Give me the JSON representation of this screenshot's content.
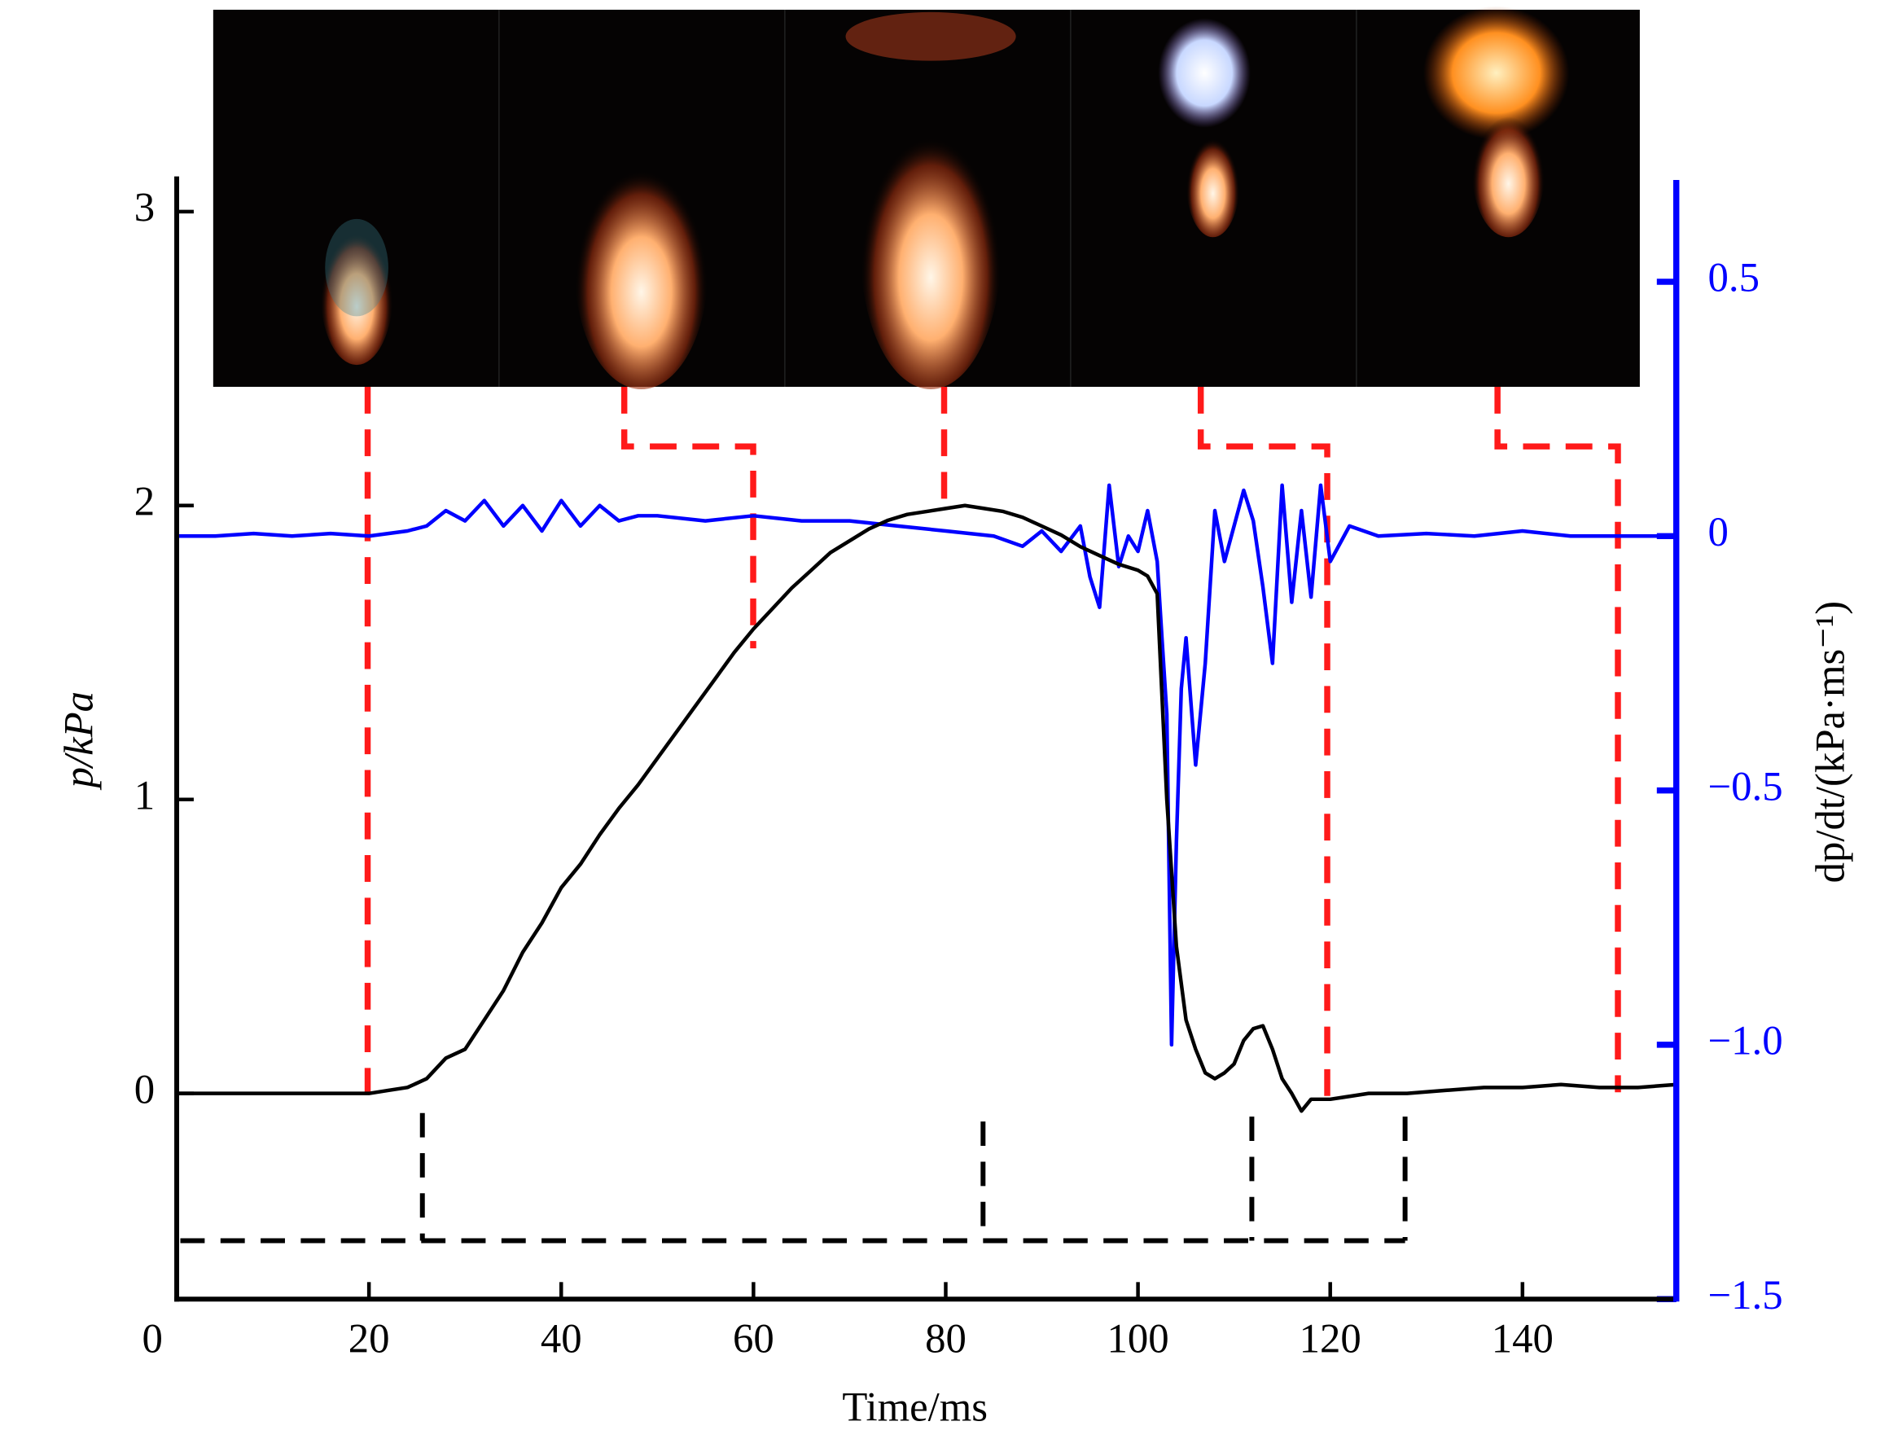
{
  "chart_data": {
    "type": "line",
    "xlabel": "Time/ms",
    "ylabel": "p/kPa",
    "y2label": "dp/dt/(kPa·ms⁻¹)",
    "xlim": [
      0,
      156
    ],
    "xticks": [
      0,
      20,
      40,
      60,
      80,
      100,
      120,
      140
    ],
    "ylim": [
      -0.7,
      3.12
    ],
    "yticks": [
      0,
      1,
      2,
      3
    ],
    "y2lim": [
      -1.5,
      0.7
    ],
    "y2ticks": [
      0.5,
      0,
      {
        "value": -0.5,
        "label": "−0.5"
      },
      {
        "value": -1,
        "label": "−1.0"
      },
      {
        "value": -1.5,
        "label": "−1.5"
      }
    ],
    "y2color": "#0000ff",
    "series": [
      {
        "color": "#000000",
        "x": [
          0,
          10,
          20,
          22,
          24,
          26,
          28,
          30,
          32,
          34,
          36,
          38,
          40,
          42,
          44,
          46,
          48,
          50,
          52,
          54,
          56,
          58,
          60,
          62,
          64,
          66,
          68,
          70,
          72,
          74,
          76,
          78,
          80,
          82,
          84,
          86,
          88,
          90,
          92,
          94,
          96,
          98,
          100,
          101,
          102,
          103,
          104,
          105,
          106,
          107,
          108,
          109,
          110,
          111,
          112,
          113,
          114,
          115,
          116,
          117,
          118,
          120,
          122,
          124,
          128,
          132,
          136,
          140,
          144,
          148,
          152,
          156
        ],
        "values": [
          0,
          0,
          0,
          0.01,
          0.02,
          0.05,
          0.12,
          0.15,
          0.25,
          0.35,
          0.48,
          0.58,
          0.7,
          0.78,
          0.88,
          0.97,
          1.05,
          1.14,
          1.23,
          1.32,
          1.41,
          1.5,
          1.58,
          1.65,
          1.72,
          1.78,
          1.84,
          1.88,
          1.92,
          1.95,
          1.97,
          1.98,
          1.99,
          2.0,
          1.99,
          1.98,
          1.96,
          1.93,
          1.9,
          1.86,
          1.83,
          1.8,
          1.78,
          1.76,
          1.7,
          1.0,
          0.5,
          0.25,
          0.15,
          0.07,
          0.05,
          0.07,
          0.1,
          0.18,
          0.22,
          0.23,
          0.15,
          0.05,
          0.0,
          -0.06,
          -0.02,
          -0.02,
          -0.01,
          0.0,
          0.0,
          0.01,
          0.02,
          0.02,
          0.03,
          0.02,
          0.02,
          0.03
        ]
      },
      {
        "color": "#0000ff",
        "axis": "y2",
        "x": [
          0,
          4,
          8,
          12,
          16,
          20,
          24,
          26,
          28,
          30,
          32,
          34,
          36,
          38,
          40,
          42,
          44,
          46,
          48,
          50,
          55,
          60,
          65,
          70,
          75,
          80,
          85,
          88,
          90,
          92,
          94,
          95,
          96,
          97,
          98,
          99,
          100,
          101,
          102,
          102.5,
          103,
          103.5,
          104,
          104.5,
          105,
          106,
          107,
          108,
          109,
          110,
          111,
          112,
          113,
          114,
          115,
          116,
          117,
          118,
          119,
          120,
          122,
          125,
          130,
          135,
          140,
          145,
          150,
          156
        ],
        "values": [
          0,
          0,
          0.005,
          0,
          0.005,
          0,
          0.01,
          0.02,
          0.05,
          0.03,
          0.07,
          0.02,
          0.06,
          0.01,
          0.07,
          0.02,
          0.06,
          0.03,
          0.04,
          0.04,
          0.03,
          0.04,
          0.03,
          0.03,
          0.02,
          0.01,
          0,
          -0.02,
          0.01,
          -0.03,
          0.02,
          -0.08,
          -0.14,
          0.1,
          -0.06,
          0,
          -0.03,
          0.05,
          -0.05,
          -0.2,
          -0.35,
          -1.0,
          -0.6,
          -0.3,
          -0.2,
          -0.45,
          -0.25,
          0.05,
          -0.05,
          0.02,
          0.09,
          0.03,
          -0.1,
          -0.25,
          0.1,
          -0.13,
          0.05,
          -0.12,
          0.1,
          -0.05,
          0.02,
          0,
          0.005,
          0,
          0.01,
          0,
          0,
          0
        ]
      }
    ]
  }
}
